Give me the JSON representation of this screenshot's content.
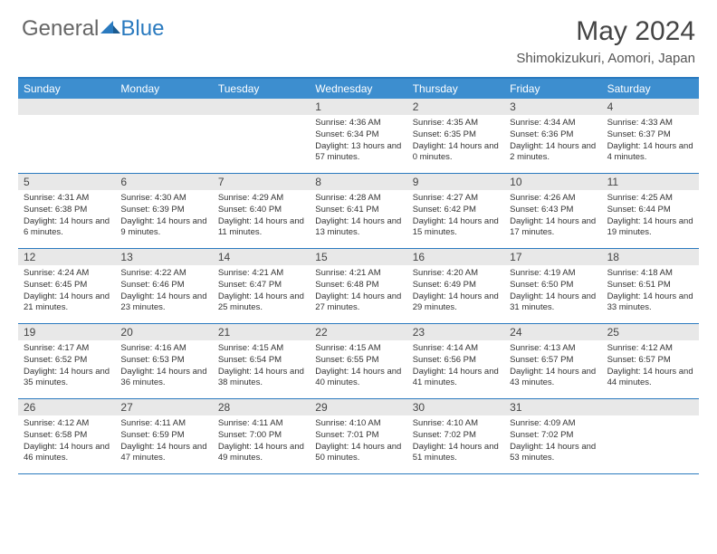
{
  "logo": {
    "general": "General",
    "blue": "Blue"
  },
  "title": "May 2024",
  "location": "Shimokizukuri, Aomori, Japan",
  "colors": {
    "header_bar": "#3d8ecf",
    "border": "#2a7abf",
    "daynum_bg": "#e8e8e8",
    "text": "#333333",
    "title_text": "#444444",
    "background": "#ffffff"
  },
  "dow": [
    "Sunday",
    "Monday",
    "Tuesday",
    "Wednesday",
    "Thursday",
    "Friday",
    "Saturday"
  ],
  "weeks": [
    [
      {
        "empty": true
      },
      {
        "empty": true
      },
      {
        "empty": true
      },
      {
        "n": "1",
        "sr": "Sunrise: 4:36 AM",
        "ss": "Sunset: 6:34 PM",
        "dl": "Daylight: 13 hours and 57 minutes."
      },
      {
        "n": "2",
        "sr": "Sunrise: 4:35 AM",
        "ss": "Sunset: 6:35 PM",
        "dl": "Daylight: 14 hours and 0 minutes."
      },
      {
        "n": "3",
        "sr": "Sunrise: 4:34 AM",
        "ss": "Sunset: 6:36 PM",
        "dl": "Daylight: 14 hours and 2 minutes."
      },
      {
        "n": "4",
        "sr": "Sunrise: 4:33 AM",
        "ss": "Sunset: 6:37 PM",
        "dl": "Daylight: 14 hours and 4 minutes."
      }
    ],
    [
      {
        "n": "5",
        "sr": "Sunrise: 4:31 AM",
        "ss": "Sunset: 6:38 PM",
        "dl": "Daylight: 14 hours and 6 minutes."
      },
      {
        "n": "6",
        "sr": "Sunrise: 4:30 AM",
        "ss": "Sunset: 6:39 PM",
        "dl": "Daylight: 14 hours and 9 minutes."
      },
      {
        "n": "7",
        "sr": "Sunrise: 4:29 AM",
        "ss": "Sunset: 6:40 PM",
        "dl": "Daylight: 14 hours and 11 minutes."
      },
      {
        "n": "8",
        "sr": "Sunrise: 4:28 AM",
        "ss": "Sunset: 6:41 PM",
        "dl": "Daylight: 14 hours and 13 minutes."
      },
      {
        "n": "9",
        "sr": "Sunrise: 4:27 AM",
        "ss": "Sunset: 6:42 PM",
        "dl": "Daylight: 14 hours and 15 minutes."
      },
      {
        "n": "10",
        "sr": "Sunrise: 4:26 AM",
        "ss": "Sunset: 6:43 PM",
        "dl": "Daylight: 14 hours and 17 minutes."
      },
      {
        "n": "11",
        "sr": "Sunrise: 4:25 AM",
        "ss": "Sunset: 6:44 PM",
        "dl": "Daylight: 14 hours and 19 minutes."
      }
    ],
    [
      {
        "n": "12",
        "sr": "Sunrise: 4:24 AM",
        "ss": "Sunset: 6:45 PM",
        "dl": "Daylight: 14 hours and 21 minutes."
      },
      {
        "n": "13",
        "sr": "Sunrise: 4:22 AM",
        "ss": "Sunset: 6:46 PM",
        "dl": "Daylight: 14 hours and 23 minutes."
      },
      {
        "n": "14",
        "sr": "Sunrise: 4:21 AM",
        "ss": "Sunset: 6:47 PM",
        "dl": "Daylight: 14 hours and 25 minutes."
      },
      {
        "n": "15",
        "sr": "Sunrise: 4:21 AM",
        "ss": "Sunset: 6:48 PM",
        "dl": "Daylight: 14 hours and 27 minutes."
      },
      {
        "n": "16",
        "sr": "Sunrise: 4:20 AM",
        "ss": "Sunset: 6:49 PM",
        "dl": "Daylight: 14 hours and 29 minutes."
      },
      {
        "n": "17",
        "sr": "Sunrise: 4:19 AM",
        "ss": "Sunset: 6:50 PM",
        "dl": "Daylight: 14 hours and 31 minutes."
      },
      {
        "n": "18",
        "sr": "Sunrise: 4:18 AM",
        "ss": "Sunset: 6:51 PM",
        "dl": "Daylight: 14 hours and 33 minutes."
      }
    ],
    [
      {
        "n": "19",
        "sr": "Sunrise: 4:17 AM",
        "ss": "Sunset: 6:52 PM",
        "dl": "Daylight: 14 hours and 35 minutes."
      },
      {
        "n": "20",
        "sr": "Sunrise: 4:16 AM",
        "ss": "Sunset: 6:53 PM",
        "dl": "Daylight: 14 hours and 36 minutes."
      },
      {
        "n": "21",
        "sr": "Sunrise: 4:15 AM",
        "ss": "Sunset: 6:54 PM",
        "dl": "Daylight: 14 hours and 38 minutes."
      },
      {
        "n": "22",
        "sr": "Sunrise: 4:15 AM",
        "ss": "Sunset: 6:55 PM",
        "dl": "Daylight: 14 hours and 40 minutes."
      },
      {
        "n": "23",
        "sr": "Sunrise: 4:14 AM",
        "ss": "Sunset: 6:56 PM",
        "dl": "Daylight: 14 hours and 41 minutes."
      },
      {
        "n": "24",
        "sr": "Sunrise: 4:13 AM",
        "ss": "Sunset: 6:57 PM",
        "dl": "Daylight: 14 hours and 43 minutes."
      },
      {
        "n": "25",
        "sr": "Sunrise: 4:12 AM",
        "ss": "Sunset: 6:57 PM",
        "dl": "Daylight: 14 hours and 44 minutes."
      }
    ],
    [
      {
        "n": "26",
        "sr": "Sunrise: 4:12 AM",
        "ss": "Sunset: 6:58 PM",
        "dl": "Daylight: 14 hours and 46 minutes."
      },
      {
        "n": "27",
        "sr": "Sunrise: 4:11 AM",
        "ss": "Sunset: 6:59 PM",
        "dl": "Daylight: 14 hours and 47 minutes."
      },
      {
        "n": "28",
        "sr": "Sunrise: 4:11 AM",
        "ss": "Sunset: 7:00 PM",
        "dl": "Daylight: 14 hours and 49 minutes."
      },
      {
        "n": "29",
        "sr": "Sunrise: 4:10 AM",
        "ss": "Sunset: 7:01 PM",
        "dl": "Daylight: 14 hours and 50 minutes."
      },
      {
        "n": "30",
        "sr": "Sunrise: 4:10 AM",
        "ss": "Sunset: 7:02 PM",
        "dl": "Daylight: 14 hours and 51 minutes."
      },
      {
        "n": "31",
        "sr": "Sunrise: 4:09 AM",
        "ss": "Sunset: 7:02 PM",
        "dl": "Daylight: 14 hours and 53 minutes."
      },
      {
        "empty": true
      }
    ]
  ]
}
